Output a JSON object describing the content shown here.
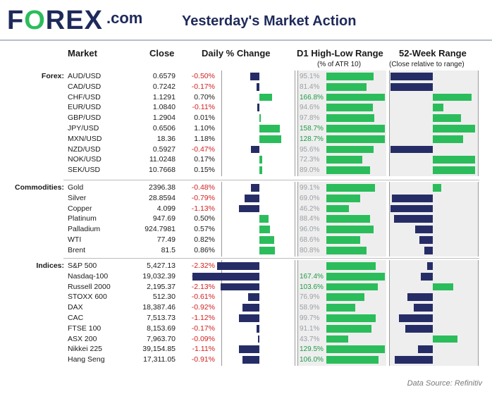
{
  "header": {
    "logo_main": "FOREX",
    "logo_dot": ".com",
    "title": "Yesterday's Market Action"
  },
  "columns": {
    "market": "Market",
    "close": "Close",
    "daily": "Daily % Change",
    "d1": "D1 High-Low Range",
    "d1_sub": "(% of ATR 10)",
    "wk52": "52-Week Range",
    "wk52_sub": "(Close relative to range)"
  },
  "footer": "Data Source: Refinitiv",
  "colors": {
    "positive": "#2bbd5b",
    "negative": "#262d66",
    "neg_text": "#d11f1f",
    "panel": "#eeeeee"
  },
  "chart_data": {
    "type": "table",
    "groups": [
      {
        "label": "Forex:",
        "rows": [
          {
            "market": "AUD/USD",
            "close": "0.6579",
            "change": "-0.50%",
            "change_val": -0.5,
            "d1": "95.1%",
            "d1_val": 95.1,
            "wk52_val": -1.0
          },
          {
            "market": "CAD/USD",
            "close": "0.7242",
            "change": "-0.17%",
            "change_val": -0.17,
            "d1": "81.4%",
            "d1_val": 81.4,
            "wk52_val": -1.0
          },
          {
            "market": "CHF/USD",
            "close": "1.1291",
            "change": "0.70%",
            "change_val": 0.7,
            "d1": "166.8%",
            "d1_val": 166.8,
            "wk52_val": 0.92
          },
          {
            "market": "EUR/USD",
            "close": "1.0840",
            "change": "-0.11%",
            "change_val": -0.11,
            "d1": "94.6%",
            "d1_val": 94.6,
            "wk52_val": 0.25
          },
          {
            "market": "GBP/USD",
            "close": "1.2904",
            "change": "0.01%",
            "change_val": 0.01,
            "d1": "97.8%",
            "d1_val": 97.8,
            "wk52_val": 0.67
          },
          {
            "market": "JPY/USD",
            "close": "0.6506",
            "change": "1.10%",
            "change_val": 1.1,
            "d1": "158.7%",
            "d1_val": 158.7,
            "wk52_val": 1.0
          },
          {
            "market": "MXN/USD",
            "close": "18.36",
            "change": "1.18%",
            "change_val": 1.18,
            "d1": "128.7%",
            "d1_val": 128.7,
            "wk52_val": 0.72
          },
          {
            "market": "NZD/USD",
            "close": "0.5927",
            "change": "-0.47%",
            "change_val": -0.47,
            "d1": "95.6%",
            "d1_val": 95.6,
            "wk52_val": -1.0
          },
          {
            "market": "NOK/USD",
            "close": "11.0248",
            "change": "0.17%",
            "change_val": 0.17,
            "d1": "72.3%",
            "d1_val": 72.3,
            "wk52_val": 1.0
          },
          {
            "market": "SEK/USD",
            "close": "10.7668",
            "change": "0.15%",
            "change_val": 0.15,
            "d1": "89.0%",
            "d1_val": 89.0,
            "wk52_val": 1.0
          }
        ]
      },
      {
        "label": "Commodities:",
        "rows": [
          {
            "market": "Gold",
            "close": "2396.38",
            "change": "-0.48%",
            "change_val": -0.48,
            "d1": "99.1%",
            "d1_val": 99.1,
            "wk52_val": 0.2
          },
          {
            "market": "Silver",
            "close": "28.8594",
            "change": "-0.79%",
            "change_val": -0.79,
            "d1": "69.0%",
            "d1_val": 69.0,
            "wk52_val": -0.96
          },
          {
            "market": "Copper",
            "close": "4.099",
            "change": "-1.13%",
            "change_val": -1.13,
            "d1": "46.2%",
            "d1_val": 46.2,
            "wk52_val": -1.0
          },
          {
            "market": "Platinum",
            "close": "947.69",
            "change": "0.50%",
            "change_val": 0.5,
            "d1": "88.4%",
            "d1_val": 88.4,
            "wk52_val": -0.92
          },
          {
            "market": "Palladium",
            "close": "924.7981",
            "change": "0.57%",
            "change_val": 0.57,
            "d1": "96.0%",
            "d1_val": 96.0,
            "wk52_val": -0.42
          },
          {
            "market": "WTI",
            "close": "77.49",
            "change": "0.82%",
            "change_val": 0.82,
            "d1": "68.6%",
            "d1_val": 68.6,
            "wk52_val": -0.32
          },
          {
            "market": "Brent",
            "close": "81.5",
            "change": "0.86%",
            "change_val": 0.86,
            "d1": "80.8%",
            "d1_val": 80.8,
            "wk52_val": -0.2
          }
        ]
      },
      {
        "label": "Indices:",
        "rows": [
          {
            "market": "S&P 500",
            "close": "5,427.13",
            "change": "-2.32%",
            "change_val": -2.32,
            "d1": "",
            "d1_val": 100.0,
            "wk52_val": -0.13
          },
          {
            "market": "Nasdaq-100",
            "close": "19,032.39",
            "change": "-3.65%",
            "change_val": -3.65,
            "d1": "167.4%",
            "d1_val": 167.4,
            "wk52_val": -0.28
          },
          {
            "market": "Russell 2000",
            "close": "2,195.37",
            "change": "-2.13%",
            "change_val": -2.13,
            "d1": "103.6%",
            "d1_val": 103.6,
            "wk52_val": 0.48
          },
          {
            "market": "STOXX 600",
            "close": "512.30",
            "change": "-0.61%",
            "change_val": -0.61,
            "d1": "76.9%",
            "d1_val": 76.9,
            "wk52_val": -0.6
          },
          {
            "market": "DAX",
            "close": "18,387.46",
            "change": "-0.92%",
            "change_val": -0.92,
            "d1": "58.9%",
            "d1_val": 58.9,
            "wk52_val": -0.45
          },
          {
            "market": "CAC",
            "close": "7,513.73",
            "change": "-1.12%",
            "change_val": -1.12,
            "d1": "99.7%",
            "d1_val": 99.7,
            "wk52_val": -0.8
          },
          {
            "market": "FTSE 100",
            "close": "8,153.69",
            "change": "-0.17%",
            "change_val": -0.17,
            "d1": "91.1%",
            "d1_val": 91.1,
            "wk52_val": -0.65
          },
          {
            "market": "ASX 200",
            "close": "7,963.70",
            "change": "-0.09%",
            "change_val": -0.09,
            "d1": "43.7%",
            "d1_val": 43.7,
            "wk52_val": 0.58
          },
          {
            "market": "Nikkei 225",
            "close": "39,154.85",
            "change": "-1.11%",
            "change_val": -1.11,
            "d1": "129.5%",
            "d1_val": 129.5,
            "wk52_val": -0.35
          },
          {
            "market": "Hang Seng",
            "close": "17,311.05",
            "change": "-0.91%",
            "change_val": -0.91,
            "d1": "106.0%",
            "d1_val": 106.0,
            "wk52_val": -0.9
          }
        ]
      }
    ],
    "scales": {
      "daily_max_abs": 3.65,
      "d1_max": 167.4,
      "wk52_range": [
        -1,
        1
      ]
    }
  }
}
